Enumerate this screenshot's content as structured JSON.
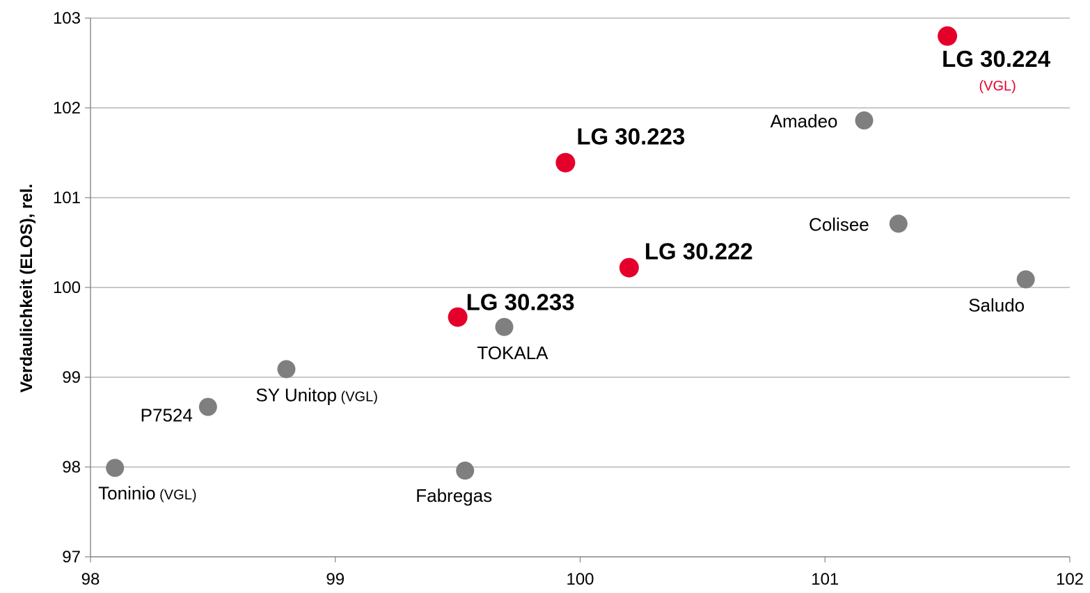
{
  "chart_data": {
    "type": "scatter",
    "title": "",
    "xlabel": "",
    "ylabel": "Verdaulichkeit (ELOS), rel.",
    "xlim": [
      98,
      102
    ],
    "ylim": [
      97,
      103
    ],
    "x_ticks": [
      "98",
      "99",
      "100",
      "101",
      "102"
    ],
    "y_ticks": [
      "97",
      "98",
      "99",
      "100",
      "101",
      "102",
      "103"
    ],
    "grid": "horizontal",
    "colors": {
      "highlight": "#e4002b",
      "default": "#7f7f7f",
      "grid": "#a6a6a6"
    },
    "points": [
      {
        "label": "LG 30.224",
        "note": "(VGL)",
        "x": 101.5,
        "y": 102.8,
        "highlight": true
      },
      {
        "label": "Amadeo",
        "note": "",
        "x": 101.16,
        "y": 101.86,
        "highlight": false
      },
      {
        "label": "LG 30.223",
        "note": "",
        "x": 99.94,
        "y": 101.39,
        "highlight": true
      },
      {
        "label": "Colisee",
        "note": "",
        "x": 101.3,
        "y": 100.71,
        "highlight": false
      },
      {
        "label": "LG 30.222",
        "note": "",
        "x": 100.2,
        "y": 100.22,
        "highlight": true
      },
      {
        "label": "Saludo",
        "note": "",
        "x": 101.82,
        "y": 100.09,
        "highlight": false
      },
      {
        "label": "LG 30.233",
        "note": "",
        "x": 99.5,
        "y": 99.67,
        "highlight": true
      },
      {
        "label": "TOKALA",
        "note": "",
        "x": 99.69,
        "y": 99.56,
        "highlight": false
      },
      {
        "label": "SY Unitop",
        "note": "(VGL)",
        "x": 98.8,
        "y": 99.09,
        "highlight": false
      },
      {
        "label": "P7524",
        "note": "",
        "x": 98.48,
        "y": 98.67,
        "highlight": false
      },
      {
        "label": "Toninio",
        "note": "(VGL)",
        "x": 98.1,
        "y": 97.99,
        "highlight": false
      },
      {
        "label": "Fabregas",
        "note": "",
        "x": 99.53,
        "y": 97.96,
        "highlight": false
      }
    ]
  }
}
